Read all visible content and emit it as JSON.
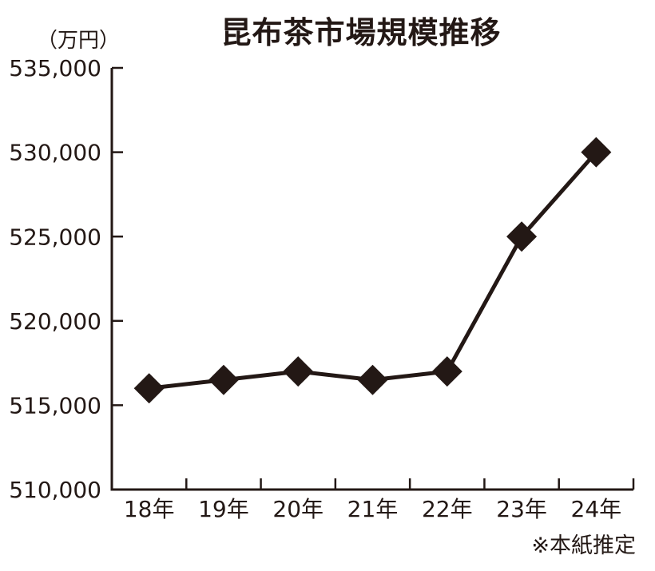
{
  "chart_data": {
    "type": "line",
    "title": "昆布茶市場規模推移",
    "unit_label": "（万円）",
    "footnote": "※本紙推定",
    "categories": [
      "18年",
      "19年",
      "20年",
      "21年",
      "22年",
      "23年",
      "24年"
    ],
    "values": [
      516000,
      516500,
      517000,
      516500,
      517000,
      525000,
      530000
    ],
    "ylim": [
      510000,
      535000
    ],
    "y_ticks": [
      {
        "value": 510000,
        "label": "510,000"
      },
      {
        "value": 515000,
        "label": "515,000"
      },
      {
        "value": 520000,
        "label": "520,000"
      },
      {
        "value": 525000,
        "label": "525,000"
      },
      {
        "value": 530000,
        "label": "530,000"
      },
      {
        "value": 535000,
        "label": "535,000"
      }
    ],
    "xlabel": "",
    "ylabel": "（万円）",
    "grid": false,
    "legend": "none",
    "marker": "diamond",
    "colors": {
      "ink": "#231815",
      "background": "#ffffff"
    }
  }
}
